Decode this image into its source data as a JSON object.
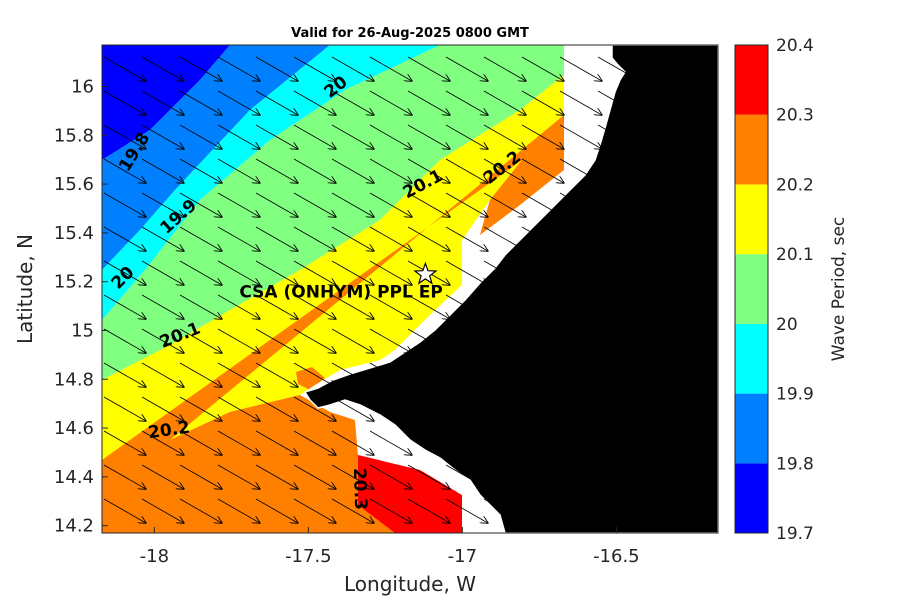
{
  "chart_data": {
    "type": "heatmap",
    "title": "Valid for 26-Aug-2025 0800 GMT",
    "xlabel": "Longitude, W",
    "ylabel": "Latitude, N",
    "xlim": [
      -18.17,
      -16.17
    ],
    "ylim": [
      14.17,
      16.17
    ],
    "xticks": [
      -18,
      -17.5,
      -17,
      -16.5
    ],
    "xtick_labels": [
      "-18",
      "-17.5",
      "-17",
      "-16.5"
    ],
    "yticks": [
      14.2,
      14.4,
      14.6,
      14.8,
      15,
      15.2,
      15.4,
      15.6,
      15.8,
      16
    ],
    "ytick_labels": [
      "14.2",
      "14.4",
      "14.6",
      "14.8",
      "15",
      "15.2",
      "15.4",
      "15.6",
      "15.8",
      "16"
    ],
    "colorbar": {
      "label": "Wave Period, sec",
      "levels": [
        19.7,
        19.8,
        19.9,
        20,
        20.1,
        20.2,
        20.3,
        20.4
      ],
      "level_labels": [
        "19.7",
        "19.8",
        "19.9",
        "20",
        "20.1",
        "20.2",
        "20.3",
        "20.4"
      ],
      "colors": [
        "#0000ff",
        "#0080ff",
        "#00ffff",
        "#80ff80",
        "#ffff00",
        "#ff8000",
        "#ff0000"
      ]
    },
    "contour_labels": [
      {
        "text": "19.8",
        "lon": -18.05,
        "lat": 15.72,
        "angle": -58
      },
      {
        "text": "19.9",
        "lon": -17.91,
        "lat": 15.45,
        "angle": -42
      },
      {
        "text": "20",
        "lon": -18.09,
        "lat": 15.2,
        "angle": -45
      },
      {
        "text": "20",
        "lon": -17.4,
        "lat": 15.98,
        "angle": -38
      },
      {
        "text": "20.1",
        "lon": -17.91,
        "lat": 14.96,
        "angle": -22
      },
      {
        "text": "20.1",
        "lon": -17.12,
        "lat": 15.58,
        "angle": -28
      },
      {
        "text": "20.2",
        "lon": -17.95,
        "lat": 14.57,
        "angle": -8
      },
      {
        "text": "20.2",
        "lon": -16.86,
        "lat": 15.65,
        "angle": -38
      },
      {
        "text": "20.3",
        "lon": -17.35,
        "lat": 14.35,
        "angle": 88
      }
    ],
    "station": {
      "name": "CSA (ONHYM) PPL EP",
      "lon": -17.12,
      "lat": 15.23
    },
    "mean_wave_direction": "toward ESE (arrows)",
    "land_color": "#000000",
    "grid": false
  }
}
